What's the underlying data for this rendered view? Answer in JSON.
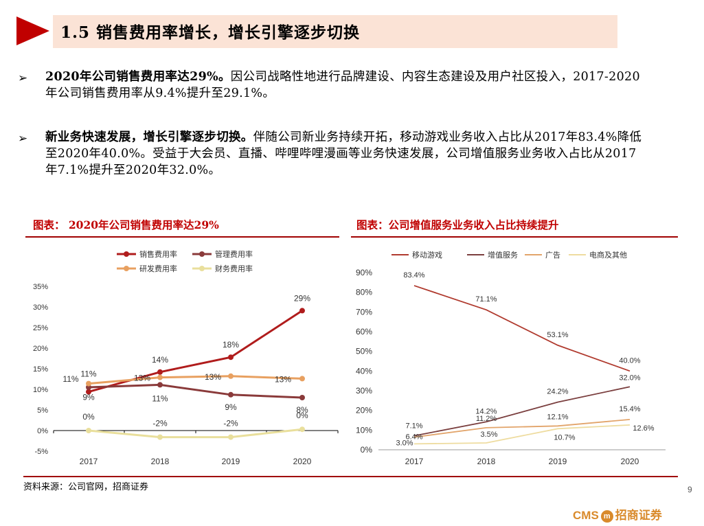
{
  "title": "1.5 销售费用率增长，增长引擎逐步切换",
  "bullets": [
    {
      "symbol": "➢",
      "lead": "2020年公司销售费用率达29%。",
      "text": "因公司战略性地进行品牌建设、内容生态建设及用户社区投入，2017-2020年公司销售费用率从9.4%提升至29.1%。"
    },
    {
      "symbol": "➢",
      "lead": "新业务快速发展，增长引擎逐步切换。",
      "text": "伴随公司新业务持续开拓，移动游戏业务收入占比从2017年83.4%降低至2020年40.0%。受益于大会员、直播、哔哩哔哩漫画等业务快速发展，公司增值服务业务收入占比从2017年7.1%提升至2020年32.0%。"
    }
  ],
  "source": "资料来源：公司官网，招商证券",
  "page_number": "9",
  "logo": {
    "left": "CMS",
    "mark": "m",
    "right": "招商证券"
  },
  "colors": {
    "brand_red": "#c00000",
    "title_bg": "#fbe3d6",
    "sales": "#b01c1c",
    "mgmt": "#8a3a3a",
    "rnd": "#e8a060",
    "fin": "#e9df9c",
    "games": "#b03a2e",
    "vas": "#7a3e3e",
    "ads": "#e2a46a",
    "ecom": "#eedc9f"
  },
  "chart_data": [
    {
      "type": "line",
      "title": "图表： 2020年公司销售费用率达29%",
      "categories": [
        "2017",
        "2018",
        "2019",
        "2020"
      ],
      "yticks": [
        "35%",
        "30%",
        "25%",
        "20%",
        "15%",
        "10%",
        "5%",
        "0%",
        "-5%"
      ],
      "ylim": [
        -5,
        35
      ],
      "grid": false,
      "legend_position": "top",
      "series": [
        {
          "name": "销售费用率",
          "values": [
            9.4,
            14.2,
            17.8,
            29.1
          ],
          "labels": [
            "9%",
            "14%",
            "18%",
            "29%"
          ],
          "color": "#b01c1c",
          "marker": true
        },
        {
          "name": "管理费用率",
          "values": [
            10.5,
            11.1,
            8.7,
            8.0
          ],
          "labels": [
            "11%",
            "11%",
            "9%",
            "8%"
          ],
          "color": "#8a3a3a",
          "marker": true
        },
        {
          "name": "研发费用率",
          "values": [
            11.4,
            12.9,
            13.2,
            12.6
          ],
          "labels": [
            "11%",
            "13%",
            "13%",
            "13%"
          ],
          "color": "#e8a060",
          "marker": true
        },
        {
          "name": "财务费用率",
          "values": [
            0.0,
            -1.6,
            -1.6,
            0.3
          ],
          "labels": [
            "0%",
            "-2%",
            "-2%",
            "0%"
          ],
          "color": "#e9df9c",
          "marker": true
        }
      ]
    },
    {
      "type": "line",
      "title": "图表：公司增值服务业务收入占比持续提升",
      "categories": [
        "2017",
        "2018",
        "2019",
        "2020"
      ],
      "yticks": [
        "90%",
        "80%",
        "70%",
        "60%",
        "50%",
        "40%",
        "30%",
        "20%",
        "10%",
        "0%"
      ],
      "ylim": [
        0,
        90
      ],
      "grid": false,
      "legend_position": "top",
      "series": [
        {
          "name": "移动游戏",
          "values": [
            83.4,
            71.1,
            53.1,
            40.0
          ],
          "labels": [
            "83.4%",
            "71.1%",
            "53.1%",
            "40.0%"
          ],
          "color": "#b03a2e",
          "marker": false
        },
        {
          "name": "增值服务",
          "values": [
            7.1,
            14.2,
            24.2,
            32.0
          ],
          "labels": [
            "7.1%",
            "14.2%",
            "24.2%",
            "32.0%"
          ],
          "color": "#7a3e3e",
          "marker": false
        },
        {
          "name": "广告",
          "values": [
            6.4,
            11.2,
            12.1,
            15.4
          ],
          "labels": [
            "6.4%",
            "11.2%",
            "12.1%",
            "15.4%"
          ],
          "color": "#e2a46a",
          "marker": false
        },
        {
          "name": "电商及其他",
          "values": [
            3.0,
            3.5,
            10.7,
            12.6
          ],
          "labels": [
            "3.0%",
            "3.5%",
            "10.7%",
            "12.6%"
          ],
          "color": "#eedc9f",
          "marker": false
        }
      ]
    }
  ]
}
